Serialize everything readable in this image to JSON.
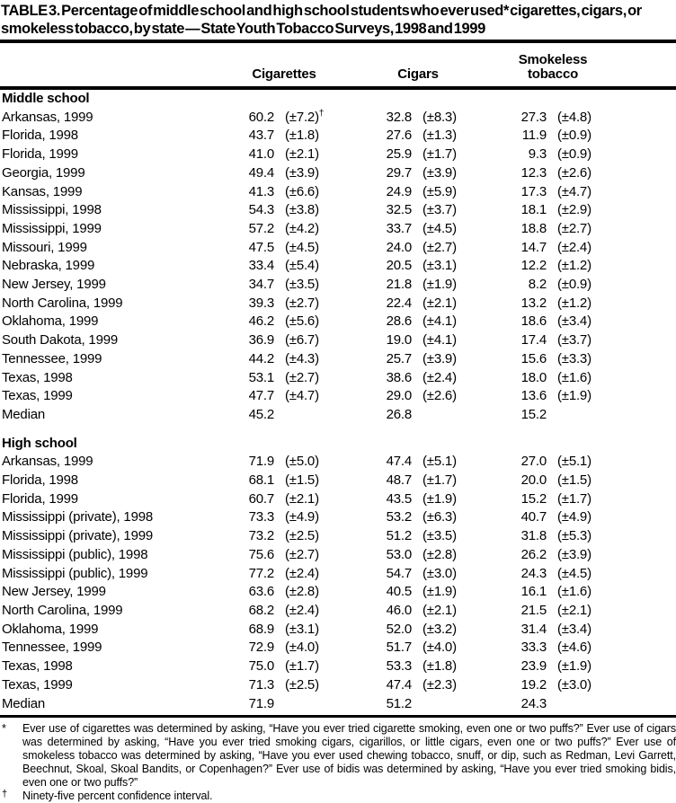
{
  "title": "TABLE 3. Percentage of middle school and high school students who ever used* cigarettes, cigars, or smokeless tobacco, by state — State Youth Tobacco Surveys, 1998 and 1999",
  "columns": [
    "Cigarettes",
    "Cigars",
    "Smokeless tobacco"
  ],
  "sections": [
    {
      "label": "Middle school",
      "rows": [
        {
          "state": "Arkansas, 1999",
          "cells": [
            "60.2",
            "(±7.2)†",
            "32.8",
            "(±8.3)",
            "27.3",
            "(±4.8)"
          ]
        },
        {
          "state": "Florida, 1998",
          "cells": [
            "43.7",
            "(±1.8)",
            "27.6",
            "(±1.3)",
            "11.9",
            "(±0.9)"
          ]
        },
        {
          "state": "Florida, 1999",
          "cells": [
            "41.0",
            "(±2.1)",
            "25.9",
            "(±1.7)",
            "9.3",
            "(±0.9)"
          ]
        },
        {
          "state": "Georgia, 1999",
          "cells": [
            "49.4",
            "(±3.9)",
            "29.7",
            "(±3.9)",
            "12.3",
            "(±2.6)"
          ]
        },
        {
          "state": "Kansas, 1999",
          "cells": [
            "41.3",
            "(±6.6)",
            "24.9",
            "(±5.9)",
            "17.3",
            "(±4.7)"
          ]
        },
        {
          "state": "Mississippi, 1998",
          "cells": [
            "54.3",
            "(±3.8)",
            "32.5",
            "(±3.7)",
            "18.1",
            "(±2.9)"
          ]
        },
        {
          "state": "Mississippi, 1999",
          "cells": [
            "57.2",
            "(±4.2)",
            "33.7",
            "(±4.5)",
            "18.8",
            "(±2.7)"
          ]
        },
        {
          "state": "Missouri, 1999",
          "cells": [
            "47.5",
            "(±4.5)",
            "24.0",
            "(±2.7)",
            "14.7",
            "(±2.4)"
          ]
        },
        {
          "state": "Nebraska, 1999",
          "cells": [
            "33.4",
            "(±5.4)",
            "20.5",
            "(±3.1)",
            "12.2",
            "(±1.2)"
          ]
        },
        {
          "state": "New Jersey, 1999",
          "cells": [
            "34.7",
            "(±3.5)",
            "21.8",
            "(±1.9)",
            "8.2",
            "(±0.9)"
          ]
        },
        {
          "state": "North Carolina, 1999",
          "cells": [
            "39.3",
            "(±2.7)",
            "22.4",
            "(±2.1)",
            "13.2",
            "(±1.2)"
          ]
        },
        {
          "state": "Oklahoma, 1999",
          "cells": [
            "46.2",
            "(±5.6)",
            "28.6",
            "(±4.1)",
            "18.6",
            "(±3.4)"
          ]
        },
        {
          "state": "South Dakota, 1999",
          "cells": [
            "36.9",
            "(±6.7)",
            "19.0",
            "(±4.1)",
            "17.4",
            "(±3.7)"
          ]
        },
        {
          "state": "Tennessee, 1999",
          "cells": [
            "44.2",
            "(±4.3)",
            "25.7",
            "(±3.9)",
            "15.6",
            "(±3.3)"
          ]
        },
        {
          "state": "Texas, 1998",
          "cells": [
            "53.1",
            "(±2.7)",
            "38.6",
            "(±2.4)",
            "18.0",
            "(±1.6)"
          ]
        },
        {
          "state": "Texas, 1999",
          "cells": [
            "47.7",
            "(±4.7)",
            "29.0",
            "(±2.6)",
            "13.6",
            "(±1.9)"
          ]
        },
        {
          "state": "Median",
          "cells": [
            "45.2",
            "",
            "26.8",
            "",
            "15.2",
            ""
          ]
        }
      ]
    },
    {
      "label": "High school",
      "rows": [
        {
          "state": "Arkansas, 1999",
          "cells": [
            "71.9",
            "(±5.0)",
            "47.4",
            "(±5.1)",
            "27.0",
            "(±5.1)"
          ]
        },
        {
          "state": "Florida, 1998",
          "cells": [
            "68.1",
            "(±1.5)",
            "48.7",
            "(±1.7)",
            "20.0",
            "(±1.5)"
          ]
        },
        {
          "state": "Florida, 1999",
          "cells": [
            "60.7",
            "(±2.1)",
            "43.5",
            "(±1.9)",
            "15.2",
            "(±1.7)"
          ]
        },
        {
          "state": "Mississippi (private), 1998",
          "cells": [
            "73.3",
            "(±4.9)",
            "53.2",
            "(±6.3)",
            "40.7",
            "(±4.9)"
          ]
        },
        {
          "state": "Mississippi (private), 1999",
          "cells": [
            "73.2",
            "(±2.5)",
            "51.2",
            "(±3.5)",
            "31.8",
            "(±5.3)"
          ]
        },
        {
          "state": "Mississippi (public), 1998",
          "cells": [
            "75.6",
            "(±2.7)",
            "53.0",
            "(±2.8)",
            "26.2",
            "(±3.9)"
          ]
        },
        {
          "state": "Mississippi (public), 1999",
          "cells": [
            "77.2",
            "(±2.4)",
            "54.7",
            "(±3.0)",
            "24.3",
            "(±4.5)"
          ]
        },
        {
          "state": "New Jersey, 1999",
          "cells": [
            "63.6",
            "(±2.8)",
            "40.5",
            "(±1.9)",
            "16.1",
            "(±1.6)"
          ]
        },
        {
          "state": "North Carolina, 1999",
          "cells": [
            "68.2",
            "(±2.4)",
            "46.0",
            "(±2.1)",
            "21.5",
            "(±2.1)"
          ]
        },
        {
          "state": "Oklahoma, 1999",
          "cells": [
            "68.9",
            "(±3.1)",
            "52.0",
            "(±3.2)",
            "31.4",
            "(±3.4)"
          ]
        },
        {
          "state": "Tennessee, 1999",
          "cells": [
            "72.9",
            "(±4.0)",
            "51.7",
            "(±4.0)",
            "33.3",
            "(±4.6)"
          ]
        },
        {
          "state": "Texas, 1998",
          "cells": [
            "75.0",
            "(±1.7)",
            "53.3",
            "(±1.8)",
            "23.9",
            "(±1.9)"
          ]
        },
        {
          "state": "Texas, 1999",
          "cells": [
            "71.3",
            "(±2.5)",
            "47.4",
            "(±2.3)",
            "19.2",
            "(±3.0)"
          ]
        },
        {
          "state": "Median",
          "cells": [
            "71.9",
            "",
            "51.2",
            "",
            "24.3",
            ""
          ]
        }
      ]
    }
  ],
  "footnotes": [
    {
      "marker": "*",
      "text": "Ever use of cigarettes was determined by asking, “Have you ever tried cigarette smoking, even one or two puffs?” Ever use of cigars was determined by asking, “Have you ever tried smoking cigars, cigarillos, or little cigars, even one or two puffs?” Ever use of smokeless tobacco was determined by asking, “Have you ever used chewing tobacco, snuff, or dip, such as Redman, Levi Garrett, Beechnut, Skoal, Skoal Bandits, or Copenhagen?” Ever use of bidis was determined by asking, “Have you ever tried smoking bidis, even one or two puffs?”"
    },
    {
      "marker": "†",
      "text": "Ninety-five percent confidence interval."
    }
  ]
}
